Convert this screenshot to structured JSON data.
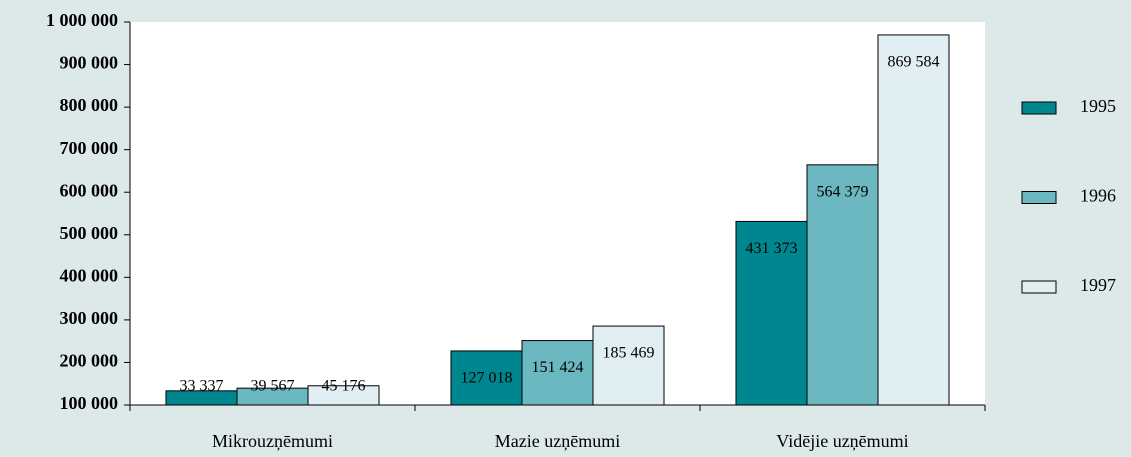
{
  "chart_data": {
    "type": "bar",
    "categories": [
      "Mikrouzņēmumi",
      "Mazie uzņēmumi",
      "Vidējie uzņēmumi"
    ],
    "series": [
      {
        "name": "1995",
        "color": "#00868f",
        "values": [
          33337,
          127018,
          431373
        ],
        "value_labels": [
          "33 337",
          "127 018",
          "431 373"
        ]
      },
      {
        "name": "1996",
        "color": "#6bb8c0",
        "values": [
          39567,
          151424,
          564379
        ],
        "value_labels": [
          "39 567",
          "151 424",
          "564 379"
        ]
      },
      {
        "name": "1997",
        "color": "#e2eff2",
        "values": [
          45176,
          185469,
          869584
        ],
        "value_labels": [
          "45 176",
          "185 469",
          "869 584"
        ]
      }
    ],
    "ylim": [
      100000,
      1000000
    ],
    "yticks": [
      {
        "value": 100000,
        "label": "100 000"
      },
      {
        "value": 200000,
        "label": "200 000"
      },
      {
        "value": 300000,
        "label": "300 000"
      },
      {
        "value": 400000,
        "label": "400 000"
      },
      {
        "value": 500000,
        "label": "500 000"
      },
      {
        "value": 600000,
        "label": "600 000"
      },
      {
        "value": 700000,
        "label": "700 000"
      },
      {
        "value": 800000,
        "label": "800 000"
      },
      {
        "value": 900000,
        "label": "900 000"
      },
      {
        "value": 1000000,
        "label": "1 000 000"
      }
    ],
    "legend": "right"
  }
}
